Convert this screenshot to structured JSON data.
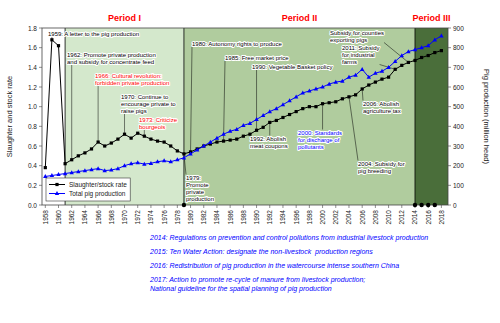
{
  "chart_data": {
    "type": "line",
    "x": [
      1958,
      1959,
      1960,
      1961,
      1962,
      1963,
      1964,
      1965,
      1966,
      1967,
      1968,
      1969,
      1970,
      1971,
      1972,
      1973,
      1974,
      1975,
      1976,
      1977,
      1978,
      1979,
      1980,
      1981,
      1982,
      1983,
      1984,
      1985,
      1986,
      1987,
      1988,
      1989,
      1990,
      1991,
      1992,
      1993,
      1994,
      1995,
      1996,
      1997,
      1998,
      1999,
      2000,
      2001,
      2002,
      2003,
      2004,
      2005,
      2006,
      2007,
      2008,
      2009,
      2010,
      2011,
      2012,
      2013,
      2014,
      2015,
      2016,
      2017,
      2018
    ],
    "xlim": [
      1957.5,
      2019
    ],
    "xticks": [
      1958,
      1960,
      1962,
      1964,
      1966,
      1968,
      1970,
      1972,
      1974,
      1976,
      1978,
      1980,
      1982,
      1984,
      1986,
      1988,
      1990,
      1992,
      1994,
      1996,
      1998,
      2000,
      2002,
      2004,
      2006,
      2008,
      2010,
      2012,
      2014,
      2016,
      2018
    ],
    "ylim": [
      0,
      1.8
    ],
    "yticks": [
      {
        "value": 0,
        "label": "0.0"
      },
      0.2,
      0.4,
      0.6,
      0.8,
      {
        "value": 1,
        "label": "1.0"
      },
      1.2,
      1.4,
      1.6,
      1.8
    ],
    "y2lim": [
      0,
      900
    ],
    "y2ticks": [
      0,
      100,
      200,
      300,
      400,
      500,
      600,
      700,
      800,
      900
    ],
    "ylabel": "Slaughter and stock rate",
    "y2label": "Pig production (million head)",
    "series": [
      {
        "name": "Slaughter/stock rate",
        "color": "black",
        "marker": "square",
        "values": [
          0.38,
          1.68,
          1.62,
          0.42,
          0.46,
          0.5,
          0.53,
          0.57,
          0.64,
          0.6,
          0.63,
          0.67,
          0.72,
          0.68,
          0.73,
          0.7,
          0.67,
          0.65,
          0.64,
          0.6,
          0.55,
          0.52,
          0.54,
          0.57,
          0.6,
          0.62,
          0.64,
          0.65,
          0.66,
          0.67,
          0.7,
          0.72,
          0.76,
          0.79,
          0.84,
          0.86,
          0.89,
          0.92,
          0.95,
          0.98,
          1.0,
          1.0,
          1.03,
          1.04,
          1.05,
          1.08,
          1.1,
          1.12,
          1.18,
          1.22,
          1.25,
          1.28,
          1.3,
          1.38,
          1.42,
          1.45,
          1.47,
          1.5,
          1.52,
          1.55,
          1.57
        ]
      },
      {
        "name": "Total pig production",
        "color": "blue",
        "marker": "triangle",
        "axis": "y2",
        "values": [
          145,
          150,
          155,
          160,
          165,
          170,
          175,
          180,
          185,
          175,
          178,
          185,
          200,
          210,
          215,
          208,
          212,
          220,
          225,
          220,
          230,
          240,
          260,
          280,
          300,
          320,
          340,
          360,
          375,
          385,
          405,
          415,
          435,
          455,
          475,
          490,
          510,
          530,
          550,
          570,
          580,
          590,
          600,
          615,
          625,
          630,
          650,
          660,
          690,
          650,
          670,
          680,
          700,
          730,
          760,
          780,
          790,
          800,
          810,
          840,
          860
        ]
      }
    ],
    "legend": "lower left",
    "grid": false,
    "periods": [
      {
        "label": "Period I",
        "start": 1961,
        "color": "#d4e8cc"
      },
      {
        "label": "Period II",
        "start": 1979,
        "color": "#b0cc9e"
      },
      {
        "label": "Period III",
        "start": 2014,
        "color": "#4a6e3a"
      }
    ],
    "annotations": [
      {
        "text": "1959: A letter to the pig production",
        "x": 1959,
        "y": 1.68,
        "color": "black"
      },
      {
        "text": "1962: Promote private production\nand subsidy for concentrate feed",
        "x": 1962,
        "y": 0.46,
        "color": "black"
      },
      {
        "text": "1966: Cultural revolution:\nforbidden private production",
        "x": 1966,
        "y": 0.64,
        "color": "red"
      },
      {
        "text": "1970: Continue to\nencourage private to\nraise pigs",
        "x": 1970,
        "y": 0.72,
        "color": "black"
      },
      {
        "text": "1973: Criticize\nbourgeois",
        "x": 1973,
        "y": 0.7,
        "color": "red"
      },
      {
        "text": "1979:\nPromote\nprivate\nproduction",
        "x": 1979,
        "y": 0.52,
        "color": "black",
        "marker": "dot"
      },
      {
        "text": "1980: Autonomy rights to produce",
        "x": 1980,
        "y": 0.54,
        "color": "black"
      },
      {
        "text": "1985: Free market price",
        "x": 1985,
        "y": 0.65,
        "color": "black"
      },
      {
        "text": "1990: Vegetable Basket policy",
        "x": 1990,
        "y": 0.76,
        "color": "black"
      },
      {
        "text": "1992: Abolish\nmeat coupons",
        "x": 1992,
        "y": 0.84,
        "color": "black"
      },
      {
        "text": "2000: Standards\nfor discharge of\npollutants",
        "x": 2000,
        "y": 1.03,
        "color": "blue"
      },
      {
        "text": "2004: Subsidy for\npig breeding",
        "x": 2004,
        "y": 1.1,
        "color": "black"
      },
      {
        "text": "2006: Abolish\nagriculture tax",
        "x": 2006,
        "y": 1.18,
        "color": "black"
      },
      {
        "text": "2011: Subsidy\nfor industrial\nfarms",
        "x": 2011,
        "y": 1.38,
        "color": "black"
      },
      {
        "text": "Subsidy for counties\nexporting pigs",
        "x": 2013,
        "y": 1.45,
        "color": "black"
      }
    ],
    "footnotes": [
      {
        "text": "2014: Regulations on prevention and control pollutions from industrial livestock production",
        "x": 2014,
        "color": "blue"
      },
      {
        "text": "2015: Ten Water Action: designate the non-livestock  production regions",
        "x": 2015,
        "color": "blue"
      },
      {
        "text": "2016: Redistribution of pig production in the watercourse intense southern China",
        "x": 2016,
        "color": "blue"
      },
      {
        "text": "2017: Action to promote re-cycle of manure from livestock production;\nNational guideline for the spatial planning of pig production",
        "x": 2017,
        "color": "blue"
      }
    ]
  }
}
